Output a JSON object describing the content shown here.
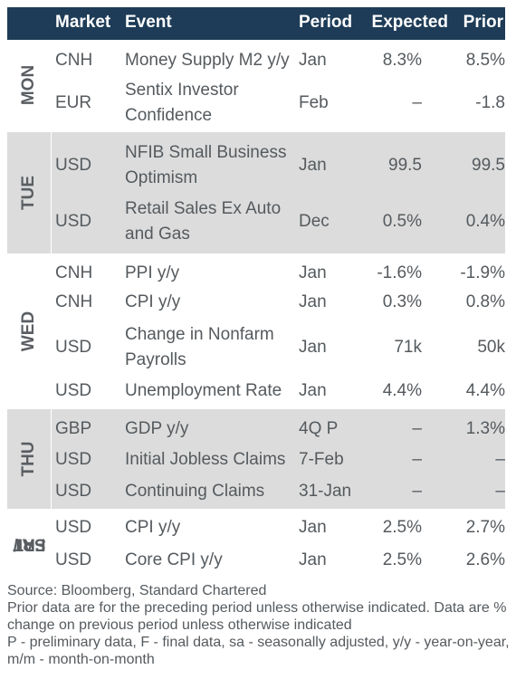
{
  "header": {
    "market": "Market",
    "event": "Event",
    "period": "Period",
    "expected": "Expected",
    "prior": "Prior"
  },
  "days": [
    {
      "label": "MON",
      "rows": [
        {
          "market": "CNH",
          "event": "Money Supply M2 y/y",
          "period": "Jan",
          "expected": "8.3%",
          "prior": "8.5%"
        },
        {
          "market": "EUR",
          "event_lines": [
            "Sentix Investor",
            "Confidence"
          ],
          "period": "Feb",
          "expected": "–",
          "prior": "-1.8"
        }
      ]
    },
    {
      "label": "TUE",
      "rows": [
        {
          "market": "USD",
          "event_lines": [
            "NFIB Small Business",
            "Optimism"
          ],
          "period": "Jan",
          "expected": "99.5",
          "prior": "99.5"
        },
        {
          "market": "USD",
          "event_lines": [
            "Retail Sales Ex Auto",
            "and Gas"
          ],
          "period": "Dec",
          "expected": "0.5%",
          "prior": "0.4%"
        }
      ]
    },
    {
      "label": "WED",
      "rows": [
        {
          "market": "CNH",
          "event": "PPI y/y",
          "period": "Jan",
          "expected": "-1.6%",
          "prior": "-1.9%"
        },
        {
          "market": "CNH",
          "event": "CPI y/y",
          "period": "Jan",
          "expected": "0.3%",
          "prior": "0.8%"
        },
        {
          "market": "USD",
          "event_lines": [
            "Change in Nonfarm",
            "Payrolls"
          ],
          "period": "Jan",
          "expected": "71k",
          "prior": "50k"
        },
        {
          "market": "USD",
          "event": "Unemployment Rate",
          "period": "Jan",
          "expected": "4.4%",
          "prior": "4.4%"
        }
      ]
    },
    {
      "label": "THU",
      "rows": [
        {
          "market": "GBP",
          "event": "GDP y/y",
          "period": "4Q P",
          "expected": "–",
          "prior": "1.3%"
        },
        {
          "market": "USD",
          "event": "Initial Jobless Claims",
          "period": "7-Feb",
          "expected": "–",
          "prior": "–"
        },
        {
          "market": "USD",
          "event": "Continuing Claims",
          "period": "31-Jan",
          "expected": "–",
          "prior": "–"
        }
      ]
    },
    {
      "label_lines": [
        "FRI/",
        "SAT"
      ],
      "rows": [
        {
          "market": "USD",
          "event": "CPI y/y",
          "period": "Jan",
          "expected": "2.5%",
          "prior": "2.7%"
        },
        {
          "market": "USD",
          "event": "Core CPI y/y",
          "period": "Jan",
          "expected": "2.5%",
          "prior": "2.6%"
        }
      ]
    }
  ],
  "footnotes": {
    "source": "Source: Bloomberg, Standard Chartered",
    "note1": "Prior data are for the preceding period unless otherwise indicated. Data are % change on previous period unless otherwise indicated",
    "note2": "P - preliminary data, F - final data, sa - seasonally adjusted, y/y - year-on-year, m/m - month-on-month"
  },
  "colors": {
    "header_bg": "#1e3c57",
    "shade": "#dcdcdc",
    "text": "#555a5e"
  }
}
